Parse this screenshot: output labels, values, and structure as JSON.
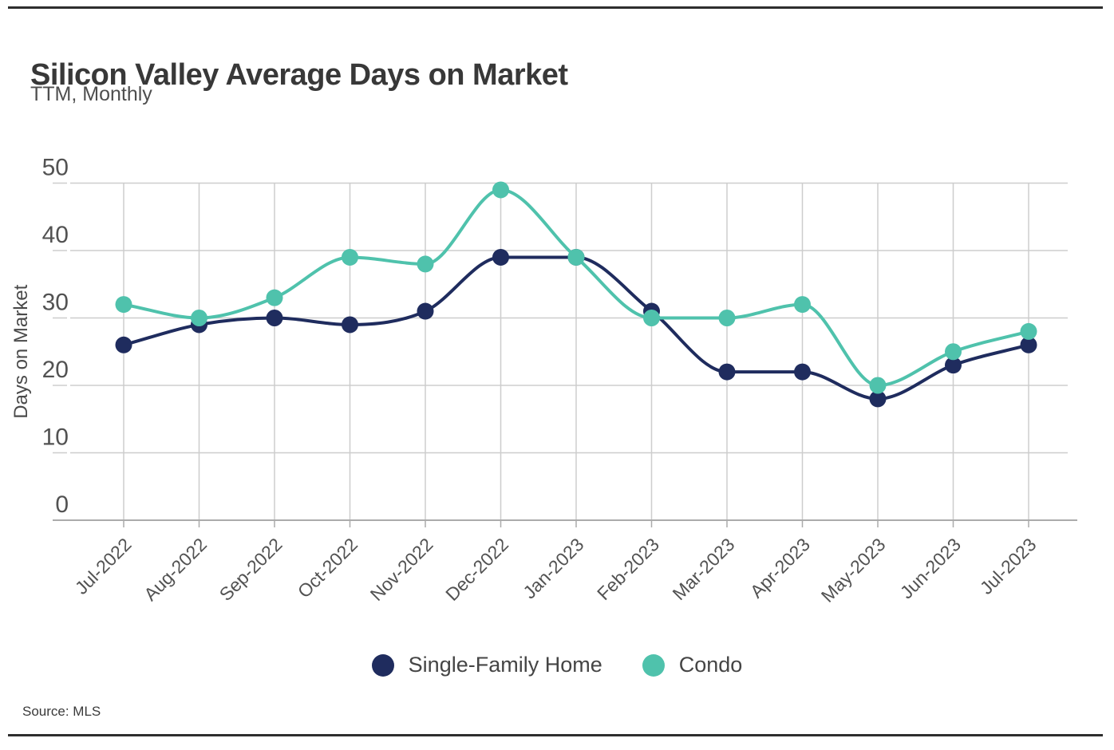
{
  "chart_data": {
    "type": "line",
    "title": "Silicon Valley Average Days on Market",
    "subtitle": "TTM, Monthly",
    "ylabel": "Days on Market",
    "xlabel": "",
    "source": "Source: MLS",
    "categories": [
      "Jul-2022",
      "Aug-2022",
      "Sep-2022",
      "Oct-2022",
      "Nov-2022",
      "Dec-2022",
      "Jan-2023",
      "Feb-2023",
      "Mar-2023",
      "Apr-2023",
      "May-2023",
      "Jun-2023",
      "Jul-2023"
    ],
    "series": [
      {
        "name": "Single-Family Home",
        "color": "#1f2c5e",
        "values": [
          26,
          29,
          30,
          29,
          31,
          39,
          39,
          31,
          22,
          22,
          18,
          23,
          26
        ]
      },
      {
        "name": "Condo",
        "color": "#4fc2ac",
        "values": [
          32,
          30,
          33,
          39,
          38,
          49,
          39,
          30,
          30,
          32,
          20,
          25,
          28
        ]
      }
    ],
    "ylim": [
      0,
      50
    ],
    "yticks": [
      0,
      10,
      20,
      30,
      40,
      50
    ],
    "grid": true,
    "legend_position": "bottom",
    "grid_color": "#cdcdcd",
    "axis_color": "#ababab",
    "tick_text_color": "#525252",
    "title_color": "#383838"
  }
}
